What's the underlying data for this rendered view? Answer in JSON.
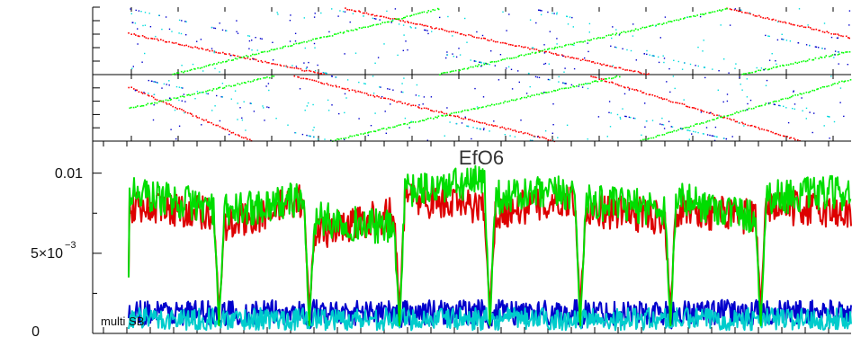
{
  "chart_data": [
    {
      "type": "scatter",
      "panel": "top",
      "title": "",
      "xlabel": "",
      "ylabel": "",
      "x_range": [
        0,
        1
      ],
      "y_range": [
        0,
        1
      ],
      "series": [
        {
          "color": "#ff0000",
          "marker": "dot",
          "tracks": [
            {
              "from": [
                0.0,
                0.62
              ],
              "to": [
                0.27,
                0.0
              ]
            },
            {
              "from": [
                0.3,
                1.0
              ],
              "to": [
                0.72,
                0.0
              ]
            },
            {
              "from": [
                0.83,
                1.0
              ],
              "to": [
                1.0,
                0.56
              ]
            }
          ]
        },
        {
          "color": "#00ff00",
          "marker": "dot",
          "tracks": [
            {
              "from": [
                0.06,
                0.0
              ],
              "to": [
                0.43,
                1.0
              ]
            },
            {
              "from": [
                0.43,
                0.0
              ],
              "to": [
                0.83,
                1.0
              ]
            },
            {
              "from": [
                0.85,
                0.0
              ],
              "to": [
                1.0,
                0.35
              ]
            }
          ]
        },
        {
          "color": "#0000cc",
          "marker": "dot",
          "scatter": true
        },
        {
          "color": "#00dddd",
          "marker": "dot",
          "scatter": true
        }
      ]
    },
    {
      "type": "scatter",
      "panel": "middle",
      "title": "",
      "xlabel": "",
      "ylabel": "",
      "x_range": [
        0,
        1
      ],
      "y_range": [
        0,
        1
      ],
      "series": [
        {
          "color": "#ff0000",
          "marker": "dot",
          "tracks": [
            {
              "from": [
                0.0,
                0.83
              ],
              "to": [
                0.17,
                0.0
              ]
            },
            {
              "from": [
                0.23,
                1.0
              ],
              "to": [
                0.59,
                0.0
              ]
            },
            {
              "from": [
                0.64,
                1.0
              ],
              "to": [
                0.93,
                0.0
              ]
            }
          ]
        },
        {
          "color": "#00ff00",
          "marker": "dot",
          "tracks": [
            {
              "from": [
                0.0,
                0.5
              ],
              "to": [
                0.2,
                1.0
              ]
            },
            {
              "from": [
                0.28,
                0.0
              ],
              "to": [
                0.68,
                1.0
              ]
            },
            {
              "from": [
                0.71,
                0.0
              ],
              "to": [
                1.0,
                0.95
              ]
            }
          ]
        },
        {
          "color": "#0000cc",
          "marker": "dot",
          "scatter": true
        },
        {
          "color": "#00dddd",
          "marker": "dot",
          "scatter": true
        }
      ]
    },
    {
      "type": "line",
      "panel": "bottom",
      "title": "EfO6",
      "annotation": "multi SB",
      "xlabel": "",
      "ylabel": "",
      "ylim": [
        0,
        0.012
      ],
      "x_range": [
        0,
        800
      ],
      "ytick_labels": [
        "0",
        "5×10",
        "−3",
        "0.01"
      ],
      "yticks": [
        0,
        0.005,
        0.01
      ],
      "dip_positions": [
        100,
        200,
        300,
        400,
        500,
        600,
        700
      ],
      "series": [
        {
          "color": "#dd0000",
          "segments": [
            {
              "x": [
                0,
                100
              ],
              "y_start": 0.008,
              "y_end": 0.0075
            },
            {
              "x": [
                100,
                200
              ],
              "y_start": 0.0065,
              "y_end": 0.0085
            },
            {
              "x": [
                200,
                300
              ],
              "y_start": 0.0062,
              "y_end": 0.0075
            },
            {
              "x": [
                300,
                400
              ],
              "y_start": 0.0085,
              "y_end": 0.0078
            },
            {
              "x": [
                400,
                500
              ],
              "y_start": 0.0075,
              "y_end": 0.0085
            },
            {
              "x": [
                500,
                600
              ],
              "y_start": 0.0078,
              "y_end": 0.0072
            },
            {
              "x": [
                600,
                700
              ],
              "y_start": 0.0078,
              "y_end": 0.0072
            },
            {
              "x": [
                700,
                800
              ],
              "y_start": 0.008,
              "y_end": 0.0075
            }
          ],
          "dip_min": 0.0015
        },
        {
          "color": "#00dd00",
          "segments": [
            {
              "x": [
                0,
                100
              ],
              "y_start": 0.0088,
              "y_end": 0.0078
            },
            {
              "x": [
                100,
                200
              ],
              "y_start": 0.0075,
              "y_end": 0.0085
            },
            {
              "x": [
                200,
                300
              ],
              "y_start": 0.0072,
              "y_end": 0.0065
            },
            {
              "x": [
                300,
                400
              ],
              "y_start": 0.0088,
              "y_end": 0.0095
            },
            {
              "x": [
                400,
                500
              ],
              "y_start": 0.0085,
              "y_end": 0.0088
            },
            {
              "x": [
                500,
                600
              ],
              "y_start": 0.0082,
              "y_end": 0.0078
            },
            {
              "x": [
                600,
                700
              ],
              "y_start": 0.0085,
              "y_end": 0.0072
            },
            {
              "x": [
                700,
                800
              ],
              "y_start": 0.0085,
              "y_end": 0.0088
            }
          ],
          "dip_min": 0.0005
        },
        {
          "color": "#0000cc",
          "mean": 0.0013,
          "amplitude": 0.0008
        },
        {
          "color": "#00cccc",
          "mean": 0.0009,
          "amplitude": 0.0007
        }
      ]
    }
  ]
}
